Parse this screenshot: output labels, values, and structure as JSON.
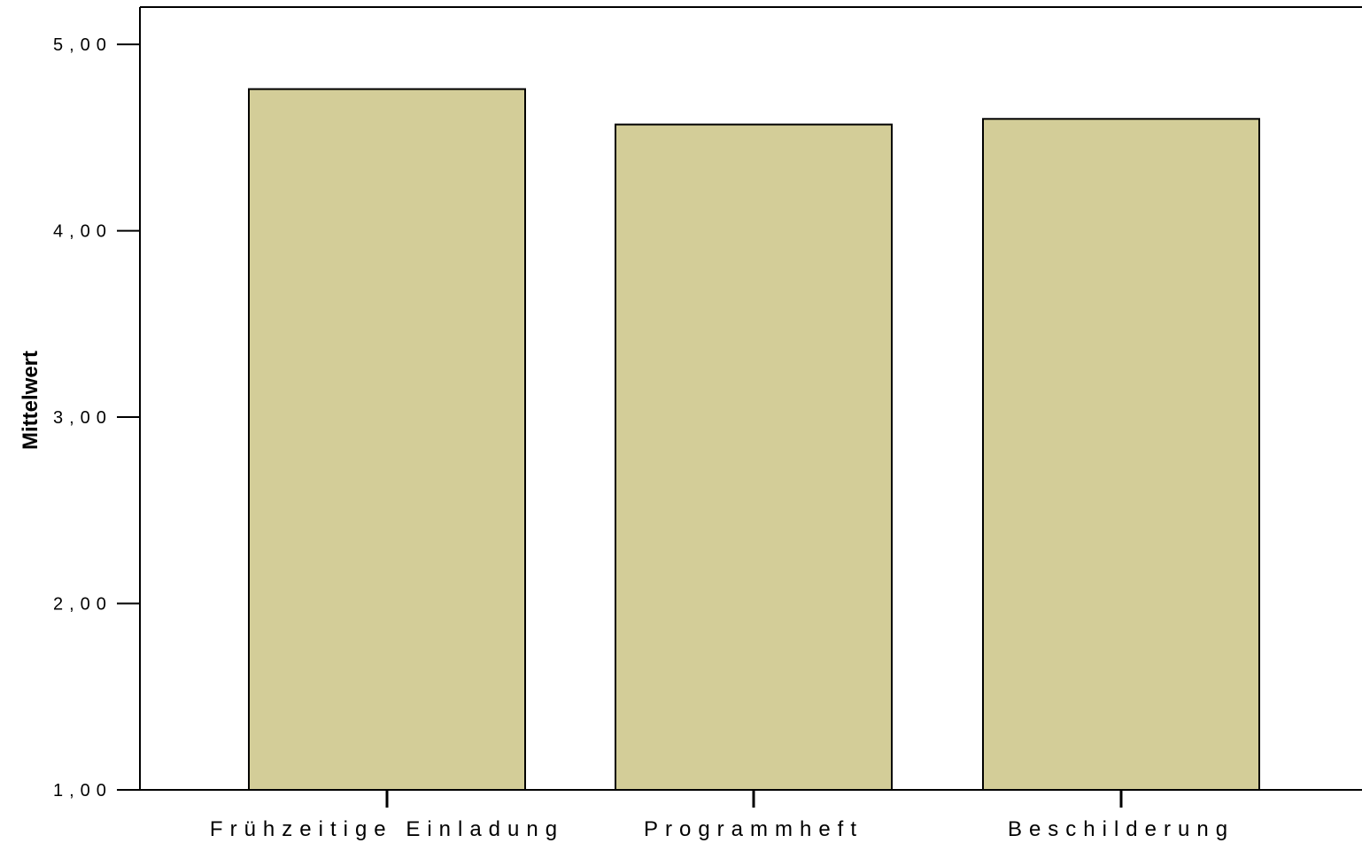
{
  "chart_data": {
    "type": "bar",
    "categories": [
      "Frühzeitige Einladung",
      "Programmheft",
      "Beschilderung"
    ],
    "values": [
      4.76,
      4.57,
      4.6
    ],
    "ylabel": "Mittelwert",
    "xlabel": "",
    "ylim": [
      1,
      5.2
    ],
    "yticks": [
      1,
      2,
      3,
      4,
      5
    ],
    "ytick_labels": [
      "1,00",
      "2,00",
      "3,00",
      "4,00",
      "5,00"
    ],
    "bar_color": "#d3cd98",
    "grid": false
  }
}
